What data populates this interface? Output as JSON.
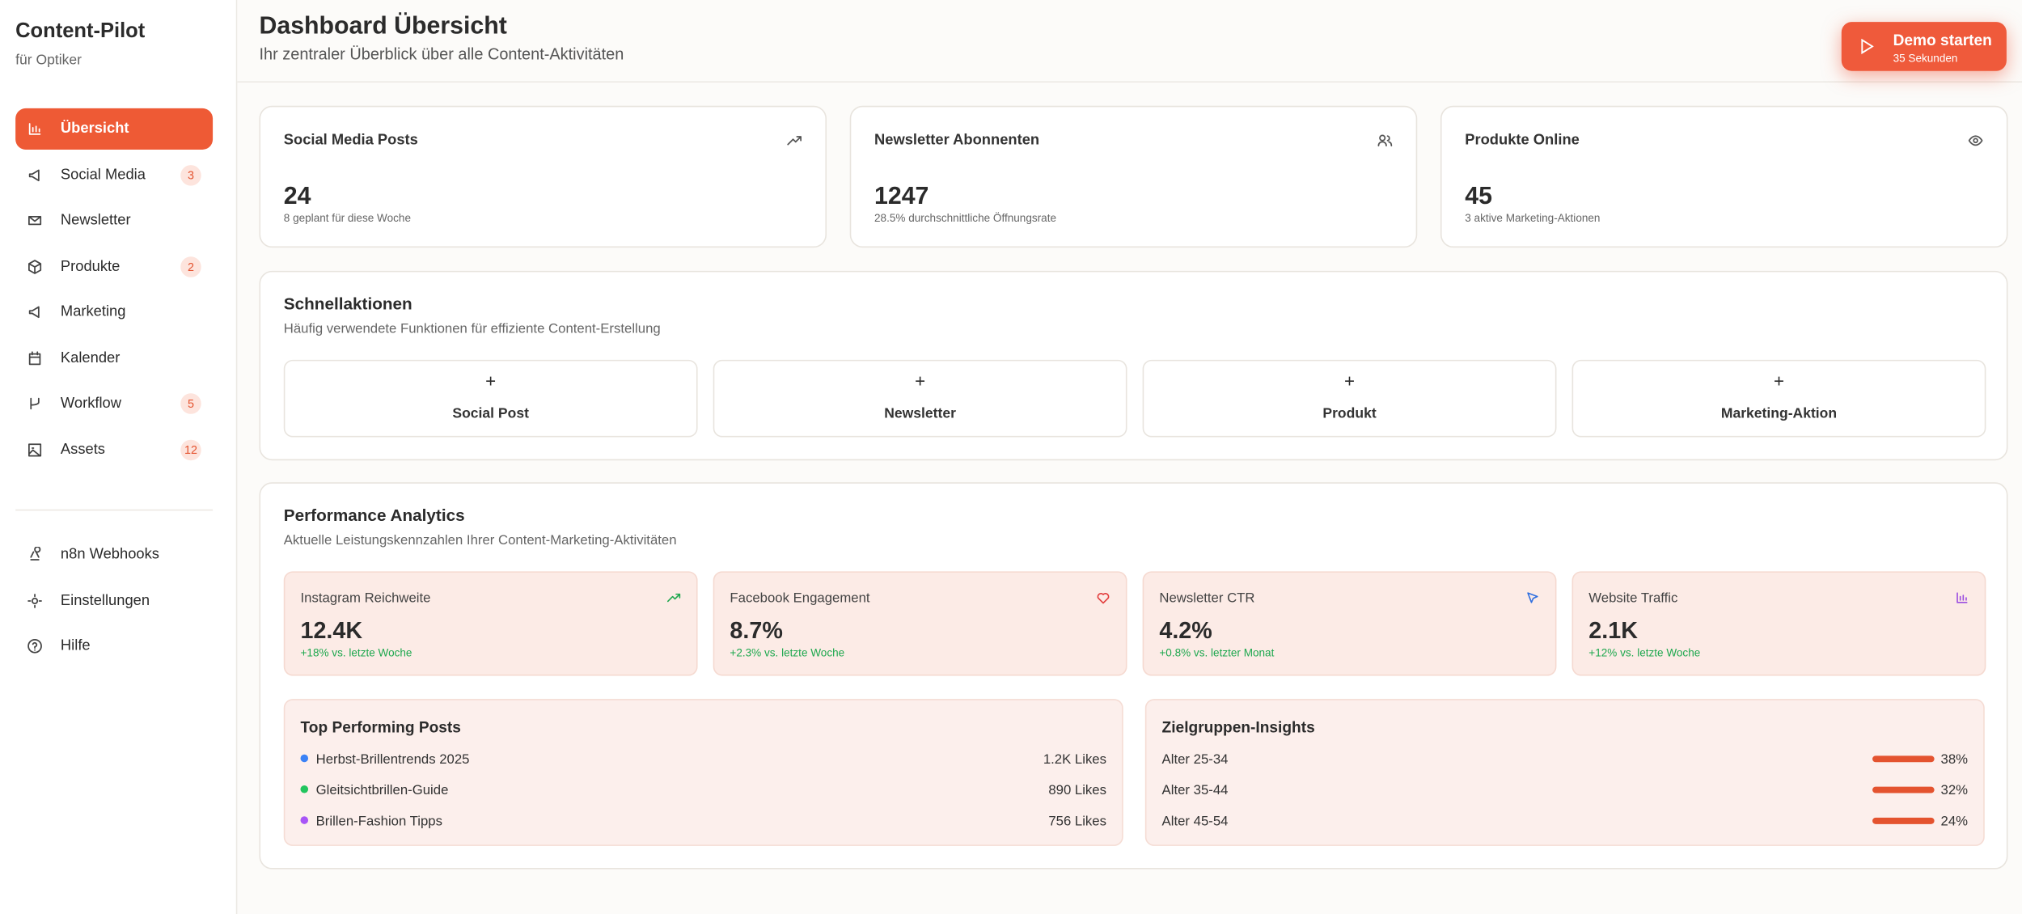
{
  "sidebar": {
    "brand": "Content-Pilot",
    "subtitle": "für Optiker",
    "nav": [
      {
        "label": "Übersicht"
      },
      {
        "label": "Social Media",
        "badge": "3"
      },
      {
        "label": "Newsletter"
      },
      {
        "label": "Produkte",
        "badge": "2"
      },
      {
        "label": "Marketing"
      },
      {
        "label": "Kalender"
      },
      {
        "label": "Workflow",
        "badge": "5"
      },
      {
        "label": "Assets",
        "badge": "12"
      }
    ],
    "footer": [
      {
        "label": "n8n Webhooks"
      },
      {
        "label": "Einstellungen"
      },
      {
        "label": "Hilfe"
      }
    ]
  },
  "header": {
    "title": "Dashboard Übersicht",
    "subtitle": "Ihr zentraler Überblick über alle Content-Aktivitäten",
    "demo_button": {
      "label": "Demo starten",
      "sub": "35 Sekunden"
    }
  },
  "stats": [
    {
      "title": "Social Media Posts",
      "value": "24",
      "note": "8 geplant für diese Woche"
    },
    {
      "title": "Newsletter Abonnenten",
      "value": "1247",
      "note": "28.5% durchschnittliche Öffnungsrate"
    },
    {
      "title": "Produkte Online",
      "value": "45",
      "note": "3 aktive Marketing-Aktionen"
    }
  ],
  "quick_actions": {
    "title": "Schnellaktionen",
    "subtitle": "Häufig verwendete Funktionen für effiziente Content-Erstellung",
    "actions": [
      "Social Post",
      "Newsletter",
      "Produkt",
      "Marketing-Aktion"
    ]
  },
  "analytics": {
    "title": "Performance Analytics",
    "subtitle": "Aktuelle Leistungskennzahlen Ihrer Content-Marketing-Aktivitäten",
    "metrics": [
      {
        "label": "Instagram Reichweite",
        "value": "12.4K",
        "change": "+18% vs. letzte Woche"
      },
      {
        "label": "Facebook Engagement",
        "value": "8.7%",
        "change": "+2.3% vs. letzte Woche"
      },
      {
        "label": "Newsletter CTR",
        "value": "4.2%",
        "change": "+0.8% vs. letzter Monat"
      },
      {
        "label": "Website Traffic",
        "value": "2.1K",
        "change": "+12% vs. letzte Woche"
      }
    ],
    "top_posts": {
      "title": "Top Performing Posts",
      "items": [
        {
          "name": "Herbst-Brillentrends 2025",
          "likes": "1.2K Likes"
        },
        {
          "name": "Gleitsichtbrillen-Guide",
          "likes": "890 Likes"
        },
        {
          "name": "Brillen-Fashion Tipps",
          "likes": "756 Likes"
        }
      ]
    },
    "insights": {
      "title": "Zielgruppen-Insights",
      "items": [
        {
          "label": "Alter 25-34",
          "share": "38%"
        },
        {
          "label": "Alter 35-44",
          "share": "32%"
        },
        {
          "label": "Alter 45-54",
          "share": "24%"
        }
      ]
    }
  }
}
